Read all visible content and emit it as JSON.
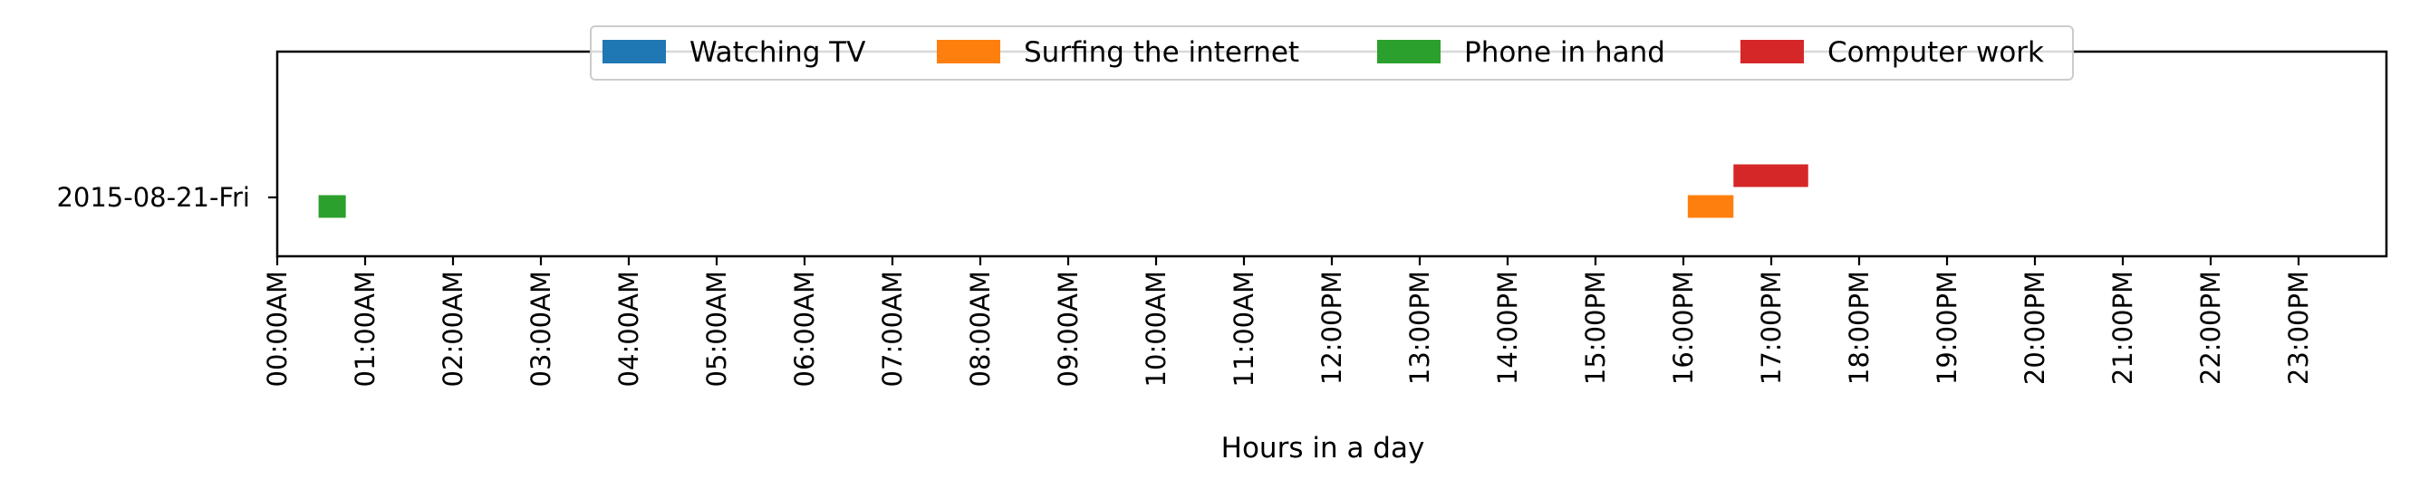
{
  "chart_data": {
    "type": "bar",
    "orientation": "horizontal-timeline",
    "xlabel": "Hours in a day",
    "ylabel": "",
    "xlim": [
      0,
      24
    ],
    "grid": false,
    "legend_placement": "top-center",
    "categories": [
      "2015-08-21-Fri"
    ],
    "x_ticks": [
      {
        "value": 0,
        "label": "00:00AM"
      },
      {
        "value": 1,
        "label": "01:00AM"
      },
      {
        "value": 2,
        "label": "02:00AM"
      },
      {
        "value": 3,
        "label": "03:00AM"
      },
      {
        "value": 4,
        "label": "04:00AM"
      },
      {
        "value": 5,
        "label": "05:00AM"
      },
      {
        "value": 6,
        "label": "06:00AM"
      },
      {
        "value": 7,
        "label": "07:00AM"
      },
      {
        "value": 8,
        "label": "08:00AM"
      },
      {
        "value": 9,
        "label": "09:00AM"
      },
      {
        "value": 10,
        "label": "10:00AM"
      },
      {
        "value": 11,
        "label": "11:00AM"
      },
      {
        "value": 12,
        "label": "12:00PM"
      },
      {
        "value": 13,
        "label": "13:00PM"
      },
      {
        "value": 14,
        "label": "14:00PM"
      },
      {
        "value": 15,
        "label": "15:00PM"
      },
      {
        "value": 16,
        "label": "16:00PM"
      },
      {
        "value": 17,
        "label": "17:00PM"
      },
      {
        "value": 18,
        "label": "18:00PM"
      },
      {
        "value": 19,
        "label": "19:00PM"
      },
      {
        "value": 20,
        "label": "20:00PM"
      },
      {
        "value": 21,
        "label": "21:00PM"
      },
      {
        "value": 22,
        "label": "22:00PM"
      },
      {
        "value": 23,
        "label": "23:00PM"
      }
    ],
    "series": [
      {
        "name": "Watching TV",
        "color": "#1f77b4",
        "intervals": []
      },
      {
        "name": "Surfing the internet",
        "color": "#ff7f0e",
        "intervals": [
          {
            "category": "2015-08-21-Fri",
            "start": 16.05,
            "end": 16.57
          }
        ]
      },
      {
        "name": "Phone in hand",
        "color": "#2ca02c",
        "intervals": [
          {
            "category": "2015-08-21-Fri",
            "start": 0.47,
            "end": 0.78
          }
        ]
      },
      {
        "name": "Computer work",
        "color": "#d62728",
        "intervals": [
          {
            "category": "2015-08-21-Fri",
            "start": 16.57,
            "end": 17.42
          }
        ]
      }
    ]
  }
}
